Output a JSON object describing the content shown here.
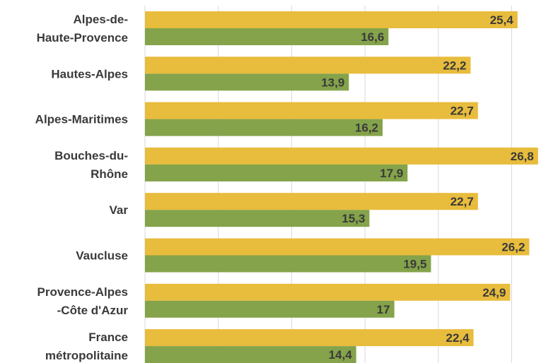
{
  "chart_data": {
    "type": "bar",
    "orientation": "horizontal",
    "categories": [
      [
        "Alpes-de-",
        "Haute-Provence"
      ],
      [
        "Hautes-Alpes"
      ],
      [
        "Alpes-Maritimes"
      ],
      [
        "Bouches-du-",
        "Rhône"
      ],
      [
        "Var"
      ],
      [
        "Vaucluse"
      ],
      [
        "Provence-Alpes",
        "-Côte d'Azur"
      ],
      [
        "France",
        "métropolitaine"
      ]
    ],
    "series": [
      {
        "color": "#e8bc3c",
        "values": [
          25.4,
          22.2,
          22.7,
          26.8,
          22.7,
          26.2,
          24.9,
          22.4
        ],
        "labels": [
          "25,4",
          "22,2",
          "22,7",
          "26,8",
          "22,7",
          "26,2",
          "24,9",
          "22,4"
        ]
      },
      {
        "color": "#84a34a",
        "values": [
          16.6,
          13.9,
          16.2,
          17.9,
          15.3,
          19.5,
          17,
          14.4
        ],
        "labels": [
          "16,6",
          "13,9",
          "16,2",
          "17,9",
          "15,3",
          "19,5",
          "17",
          "14,4"
        ]
      }
    ],
    "xlim": [
      0,
      27
    ],
    "grid": true,
    "grid_step": 5,
    "legend": false
  }
}
